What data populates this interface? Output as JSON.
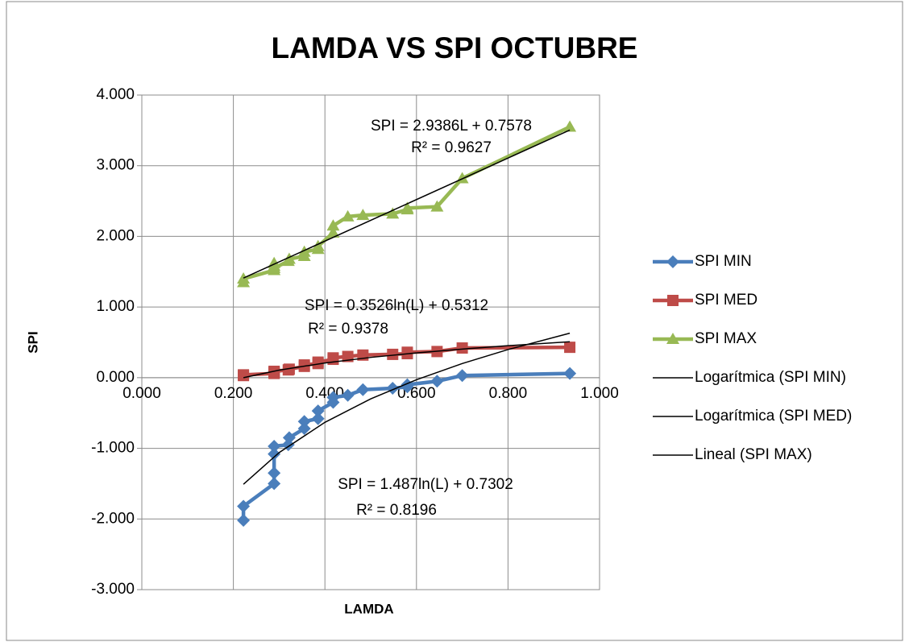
{
  "chart_data": {
    "type": "scatter",
    "title": "LAMDA VS SPI OCTUBRE",
    "x_label": "LAMDA",
    "y_label": "SPI",
    "x": [
      0.222,
      0.222,
      0.289,
      0.289,
      0.289,
      0.289,
      0.32,
      0.322,
      0.355,
      0.355,
      0.385,
      0.385,
      0.418,
      0.418,
      0.45,
      0.483,
      0.548,
      0.58,
      0.58,
      0.645,
      0.7,
      0.935
    ],
    "series": [
      {
        "name": "SPI MIN",
        "color": "#4a7ebb",
        "marker": "diamond",
        "values": [
          -2.02,
          -1.82,
          -1.5,
          -1.35,
          -1.08,
          -0.97,
          -0.95,
          -0.85,
          -0.72,
          -0.62,
          -0.58,
          -0.47,
          -0.35,
          -0.28,
          -0.25,
          -0.17,
          -0.15,
          -0.13,
          -0.1,
          -0.05,
          0.03,
          0.06
        ]
      },
      {
        "name": "SPI MED",
        "color": "#be4b48",
        "marker": "square",
        "values": [
          0.03,
          0.04,
          0.06,
          0.07,
          0.08,
          0.09,
          0.11,
          0.12,
          0.16,
          0.18,
          0.2,
          0.22,
          0.26,
          0.28,
          0.3,
          0.32,
          0.33,
          0.34,
          0.36,
          0.37,
          0.42,
          0.43
        ]
      },
      {
        "name": "SPI MAX",
        "color": "#98b954",
        "marker": "triangle",
        "values": [
          1.35,
          1.4,
          1.52,
          1.58,
          1.62,
          1.55,
          1.65,
          1.68,
          1.72,
          1.78,
          1.82,
          1.86,
          2.05,
          2.15,
          2.28,
          2.3,
          2.32,
          2.38,
          2.4,
          2.42,
          2.82,
          3.55
        ]
      },
      {
        "name": "Logarítmica (SPI MIN)",
        "color": "#000000",
        "marker": "none",
        "x": [
          0.222,
          0.3,
          0.4,
          0.5,
          0.6,
          0.7,
          0.8,
          0.935
        ],
        "values": [
          -1.508,
          -1.06,
          -0.632,
          -0.3,
          -0.029,
          0.2,
          0.398,
          0.63
        ]
      },
      {
        "name": "Logarítmica (SPI MED)",
        "color": "#000000",
        "marker": "none",
        "x": [
          0.222,
          0.3,
          0.4,
          0.5,
          0.6,
          0.7,
          0.8,
          0.935
        ],
        "values": [
          0.0,
          0.107,
          0.208,
          0.287,
          0.351,
          0.405,
          0.453,
          0.508
        ]
      },
      {
        "name": "Lineal (SPI MAX)",
        "color": "#000000",
        "marker": "none",
        "x": [
          0.222,
          0.935
        ],
        "values": [
          1.41,
          3.505
        ]
      }
    ],
    "annotations": [
      "SPI = 2.9386L + 0.7578",
      "R² = 0.9627",
      "SPI = 0.3526ln(L) + 0.5312",
      "R² = 0.9378",
      "SPI = 1.487ln(L) + 0.7302",
      "R² = 0.8196"
    ],
    "xlim": [
      0,
      1
    ],
    "ylim": [
      -3,
      4
    ],
    "xticks": [
      {
        "value": 0,
        "label": "0.000"
      },
      {
        "value": 0.2,
        "label": "0.200"
      },
      {
        "value": 0.4,
        "label": "0.400"
      },
      {
        "value": 0.6,
        "label": "0.600"
      },
      {
        "value": 0.8,
        "label": "0.800"
      },
      {
        "value": 1,
        "label": "1.000"
      }
    ],
    "yticks": [
      {
        "value": -3,
        "label": "-3.000"
      },
      {
        "value": -2,
        "label": "-2.000"
      },
      {
        "value": -1,
        "label": "-1.000"
      },
      {
        "value": 0,
        "label": "0.000"
      },
      {
        "value": 1,
        "label": "1.000"
      },
      {
        "value": 2,
        "label": "2.000"
      },
      {
        "value": 3,
        "label": "3.000"
      },
      {
        "value": 4,
        "label": "4.000"
      }
    ],
    "grid": true,
    "legend": "right"
  }
}
